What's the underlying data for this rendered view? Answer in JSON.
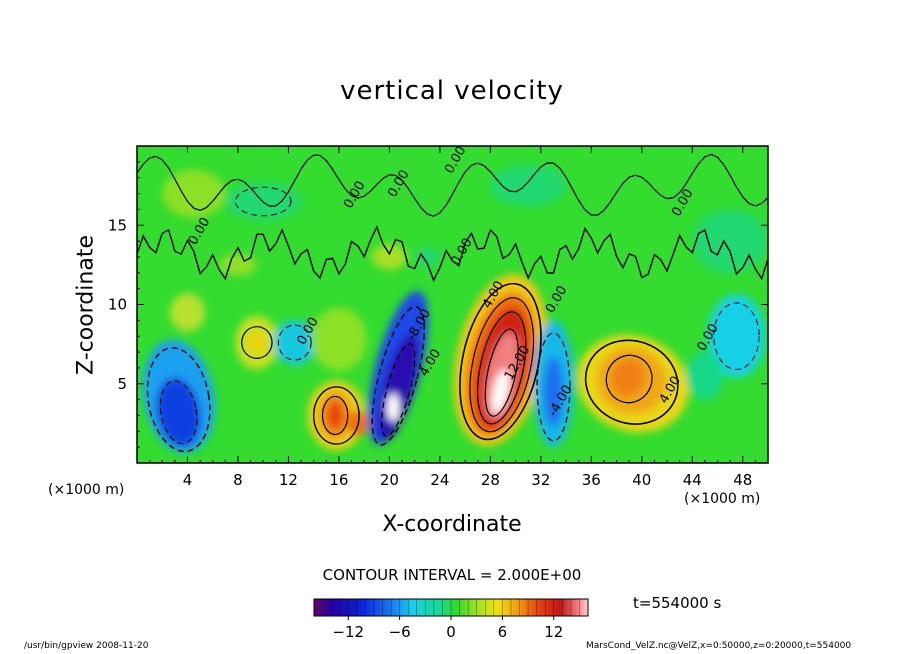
{
  "chart_data": {
    "type": "heatmap",
    "title": "vertical velocity",
    "xlabel": "X-coordinate",
    "ylabel": "Z-coordinate",
    "x_unit_left": "(×1000 m)",
    "x_unit_right": "(×1000 m)",
    "x_ticks": [
      4,
      8,
      12,
      16,
      20,
      24,
      28,
      32,
      36,
      40,
      44,
      48
    ],
    "y_ticks": [
      5,
      10,
      15
    ],
    "xlim": [
      0,
      50
    ],
    "ylim": [
      0,
      20
    ],
    "contour_interval_text": "CONTOUR INTERVAL = 2.000E+00",
    "time_text": "t=554000 s",
    "colorbar": {
      "range": [
        -16,
        16
      ],
      "ticks": [
        -12,
        -6,
        0,
        6,
        12
      ],
      "tick_labels": [
        "−12",
        "−6",
        "0",
        "6",
        "12"
      ]
    },
    "contour_labels": [
      {
        "text": "0.00",
        "x": 26,
        "z": 13.2
      },
      {
        "text": "0.00",
        "x": 21,
        "z": 17.5
      },
      {
        "text": "0.00",
        "x": 17.5,
        "z": 16.8
      },
      {
        "text": "0.00",
        "x": 25.5,
        "z": 19
      },
      {
        "text": "0.00",
        "x": 43.5,
        "z": 16.3
      },
      {
        "text": "0.00",
        "x": 5.2,
        "z": 14.5
      },
      {
        "text": "0.00",
        "x": 13.8,
        "z": 8.2
      },
      {
        "text": "0.00",
        "x": 33.5,
        "z": 10.2
      },
      {
        "text": "0.00",
        "x": 45.5,
        "z": 7.8
      },
      {
        "text": "4.00",
        "x": 28.5,
        "z": 10.5
      },
      {
        "text": "4.00",
        "x": 42.5,
        "z": 4.5
      },
      {
        "text": "4.00",
        "x": 23.5,
        "z": 6.2
      },
      {
        "text": "-8.00",
        "x": 22.6,
        "z": 8.6
      },
      {
        "text": "-4.00",
        "x": 33.8,
        "z": 3.8
      },
      {
        "text": "12.00",
        "x": 30.4,
        "z": 6.2
      }
    ],
    "features": [
      {
        "x": 29.3,
        "z": 5.5,
        "amplitude": 14,
        "note": "strong updraft"
      },
      {
        "x": 39.4,
        "z": 5.0,
        "amplitude": 7.5
      },
      {
        "x": 15.8,
        "z": 3.0,
        "amplitude": 8
      },
      {
        "x": 20.7,
        "z": 4.5,
        "amplitude": -13,
        "note": "strong downdraft"
      },
      {
        "x": 3.3,
        "z": 4.5,
        "amplitude": -8
      },
      {
        "x": 33.0,
        "z": 4.8,
        "amplitude": -6
      }
    ]
  },
  "footer_left": "/usr/bin/gpview  2008-11-20",
  "footer_right": "MarsCond_VelZ.nc@VelZ,x=0:50000,z=0:20000,t=554000"
}
